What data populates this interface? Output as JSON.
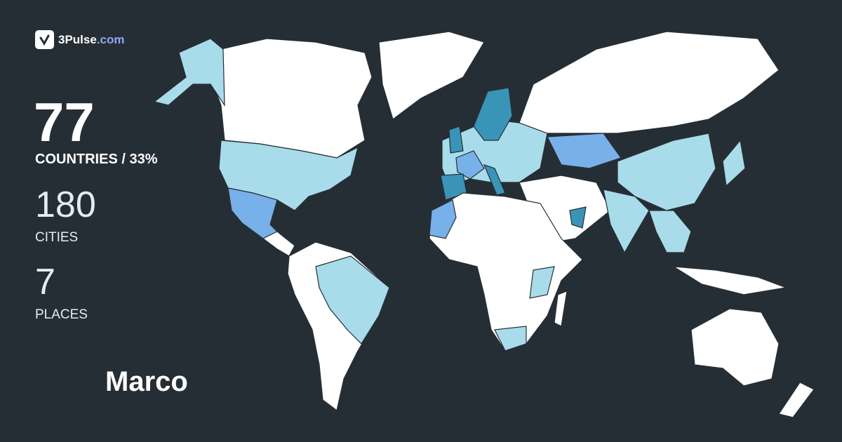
{
  "logo": {
    "brand": "3Pulse",
    "domain": ".com"
  },
  "stats": {
    "countries": "77",
    "countries_label": "COUNTRIES / 33%",
    "cities": "180",
    "cities_label": "CITIES",
    "places": "7",
    "places_label": "PLACES"
  },
  "user_name": "Marco",
  "colors": {
    "background": "#262e35",
    "unvisited": "#ffffff",
    "visited_light": "#a8dcea",
    "visited_medium": "#78b0ea",
    "visited_dark": "#3a94b8"
  }
}
